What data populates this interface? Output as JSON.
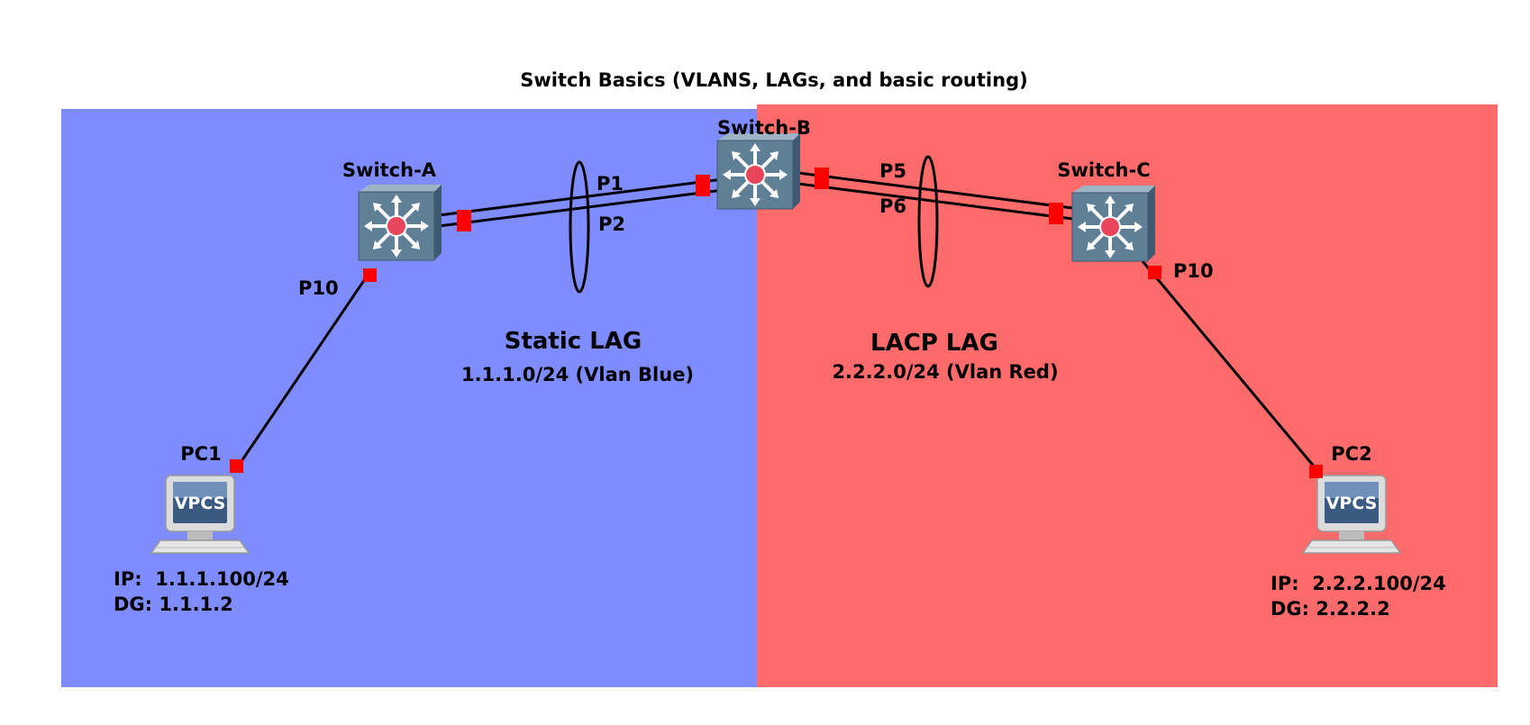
{
  "title": "Switch Basics (VLANS, LAGs, and basic routing)",
  "colors": {
    "vlan_blue": "#7f8cff",
    "vlan_red": "#ff6b6b",
    "port": "#ff0000",
    "switch": "#5f7f97",
    "router_dot": "#e8455a"
  },
  "devices": {
    "switch_a": {
      "label": "Switch-A",
      "icon": "multilayer-switch-icon"
    },
    "switch_b": {
      "label": "Switch-B",
      "icon": "multilayer-switch-icon"
    },
    "switch_c": {
      "label": "Switch-C",
      "icon": "multilayer-switch-icon"
    },
    "pc1": {
      "label": "PC1",
      "icon": "vpcs-computer-icon",
      "badge": "VPCS",
      "ip": "IP:  1.1.1.100/24",
      "dg": "DG: 1.1.1.2"
    },
    "pc2": {
      "label": "PC2",
      "icon": "vpcs-computer-icon",
      "badge": "VPCS",
      "ip": "IP:  2.2.2.100/24",
      "dg": "DG: 2.2.2.2"
    }
  },
  "ports": {
    "a_p10": "P10",
    "p1": "P1",
    "p2": "P2",
    "p5": "P5",
    "p6": "P6",
    "c_p10": "P10"
  },
  "zones": {
    "blue": {
      "lag_title": "Static LAG",
      "subnet": "1.1.1.0/24 (Vlan Blue)"
    },
    "red": {
      "lag_title": "LACP LAG",
      "subnet": "2.2.2.0/24 (Vlan Red)"
    }
  }
}
